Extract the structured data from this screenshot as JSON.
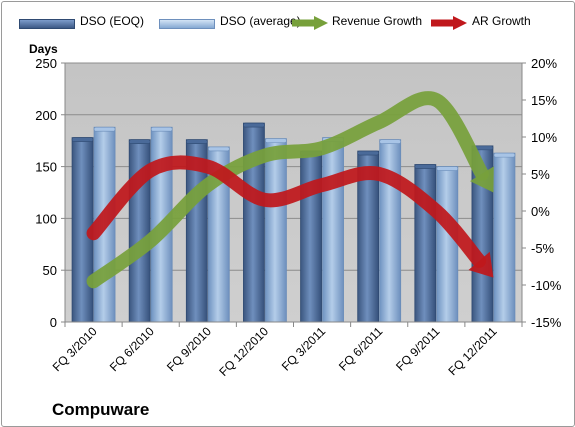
{
  "company": "Compuware",
  "chart_data": {
    "type": "bar",
    "categories": [
      "FQ 3/2010",
      "FQ 6/2010",
      "FQ 9/2010",
      "FQ 12/2010",
      "FQ 3/2011",
      "FQ 6/2011",
      "FQ 9/2011",
      "FQ 12/2011"
    ],
    "series": [
      {
        "name": "DSO (EOQ)",
        "axis": "left",
        "values": [
          178,
          176,
          176,
          192,
          165,
          165,
          152,
          170
        ],
        "color": "#4f6e9c"
      },
      {
        "name": "DSO (average)",
        "axis": "left",
        "values": [
          188,
          188,
          169,
          177,
          178,
          176,
          150,
          163
        ],
        "color": "#8fb2d9"
      },
      {
        "name": "Revenue Growth",
        "axis": "right",
        "type": "line",
        "values": [
          -9.5,
          -4,
          3.5,
          7.5,
          8.5,
          12,
          15,
          2.5
        ],
        "color": "#77a03b"
      },
      {
        "name": "AR Growth",
        "axis": "right",
        "type": "line",
        "values": [
          -3,
          5.5,
          6,
          1.5,
          3.5,
          5,
          0,
          -9
        ],
        "color": "#c0181c"
      }
    ],
    "ylabel": "Days",
    "ylim": [
      0,
      250
    ],
    "yticks": [
      "0",
      "50",
      "100",
      "150",
      "200",
      "250"
    ],
    "y2lim": [
      -15,
      20
    ],
    "y2ticks": [
      "-15%",
      "-10%",
      "-5%",
      "0%",
      "5%",
      "10%",
      "15%",
      "20%"
    ],
    "grid": true,
    "legend": "top"
  }
}
